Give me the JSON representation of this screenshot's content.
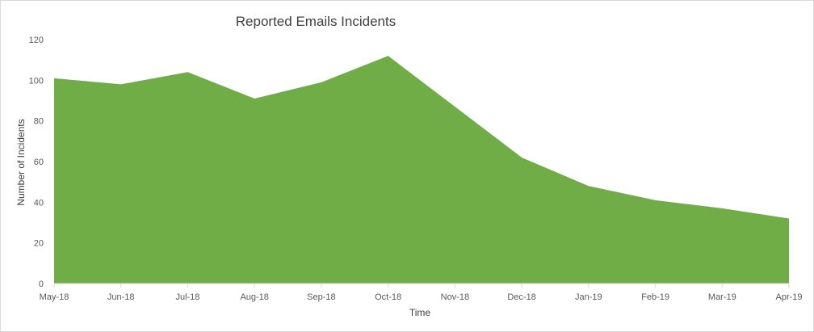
{
  "chart_data": {
    "type": "area",
    "title": "Reported Emails Incidents",
    "xlabel": "Time",
    "ylabel": "Number of Incidents",
    "categories": [
      "May-18",
      "Jun-18",
      "Jul-18",
      "Aug-18",
      "Sep-18",
      "Oct-18",
      "Nov-18",
      "Dec-18",
      "Jan-19",
      "Feb-19",
      "Mar-19",
      "Apr-19"
    ],
    "series": [
      {
        "values": [
          101,
          98,
          104,
          91,
          99,
          112,
          87,
          62,
          48,
          41,
          37,
          32
        ],
        "color": "#70ad47"
      }
    ],
    "ylim": [
      0,
      120
    ],
    "yticks": [
      0,
      20,
      40,
      60,
      80,
      100,
      120
    ],
    "grid": false,
    "legend": "none"
  }
}
